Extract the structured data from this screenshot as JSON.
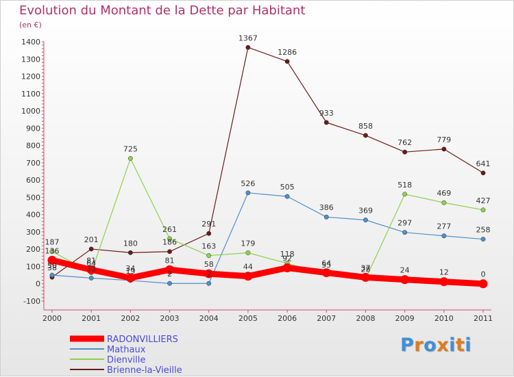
{
  "chart_data": {
    "type": "line",
    "title": "Evolution du Montant de la Dette par Habitant",
    "subtitle": "(en €)",
    "x": [
      "2000",
      "2001",
      "2002",
      "2003",
      "2004",
      "2005",
      "2006",
      "2007",
      "2008",
      "2009",
      "2010",
      "2011"
    ],
    "ylim": [
      -100,
      1400
    ],
    "yticks": [
      -100,
      0,
      100,
      200,
      300,
      400,
      500,
      600,
      700,
      800,
      900,
      1000,
      1100,
      1200,
      1300,
      1400
    ],
    "grid": false,
    "legend_position": "bottom-left",
    "series": [
      {
        "name": "Brienne-la-Vieille",
        "color": "#6b1a1a",
        "width": 1.2,
        "values": [
          38,
          201,
          180,
          186,
          291,
          1367,
          1286,
          933,
          858,
          762,
          779,
          641
        ],
        "labels": [
          "38",
          "201",
          "180",
          "186",
          "291",
          "1367",
          "1286",
          "933",
          "858",
          "762",
          "779",
          "641"
        ]
      },
      {
        "name": "Mathaux",
        "color": "#4f8fca",
        "width": 1.2,
        "values": [
          50,
          33,
          19,
          2,
          2,
          526,
          505,
          386,
          369,
          297,
          277,
          258
        ],
        "labels": [
          "50",
          "33",
          "19",
          "2",
          "2",
          "526",
          "505",
          "386",
          "369",
          "297",
          "277",
          "258"
        ]
      },
      {
        "name": "Dienville",
        "color": "#8ed14a",
        "width": 1.2,
        "values": [
          187,
          64,
          725,
          261,
          163,
          179,
          118,
          55,
          28,
          518,
          469,
          427
        ],
        "labels": [
          "187",
          "64",
          "725",
          "261",
          "163",
          "179",
          "118",
          "55",
          "28",
          "518",
          "469",
          "427"
        ]
      },
      {
        "name": "RADONVILLIERS",
        "color": "#ff0000",
        "width": 9,
        "values": [
          136,
          81,
          34,
          81,
          58,
          44,
          92,
          64,
          37,
          24,
          12,
          0
        ],
        "labels": [
          "136",
          "81",
          "34",
          "81",
          "58",
          "44",
          "92",
          "64",
          "37",
          "24",
          "12",
          "0"
        ]
      }
    ]
  },
  "legend": [
    {
      "name": "RADONVILLIERS",
      "color": "#ff0000",
      "text_color": "#4a4ad6"
    },
    {
      "name": "Mathaux",
      "color": "#4f8fca",
      "text_color": "#4a4ad6"
    },
    {
      "name": "Dienville",
      "color": "#8ed14a",
      "text_color": "#4a4ad6"
    },
    {
      "name": "Brienne-la-Vieille",
      "color": "#6b1a1a",
      "text_color": "#4a4ad6"
    }
  ],
  "logo": {
    "text": "Proxiti",
    "colors": [
      "#3f8fd6",
      "#e07b1e",
      "#3f8fd6",
      "#e07b1e",
      "#3f8fd6",
      "#e07b1e",
      "#3f8fd6"
    ]
  }
}
